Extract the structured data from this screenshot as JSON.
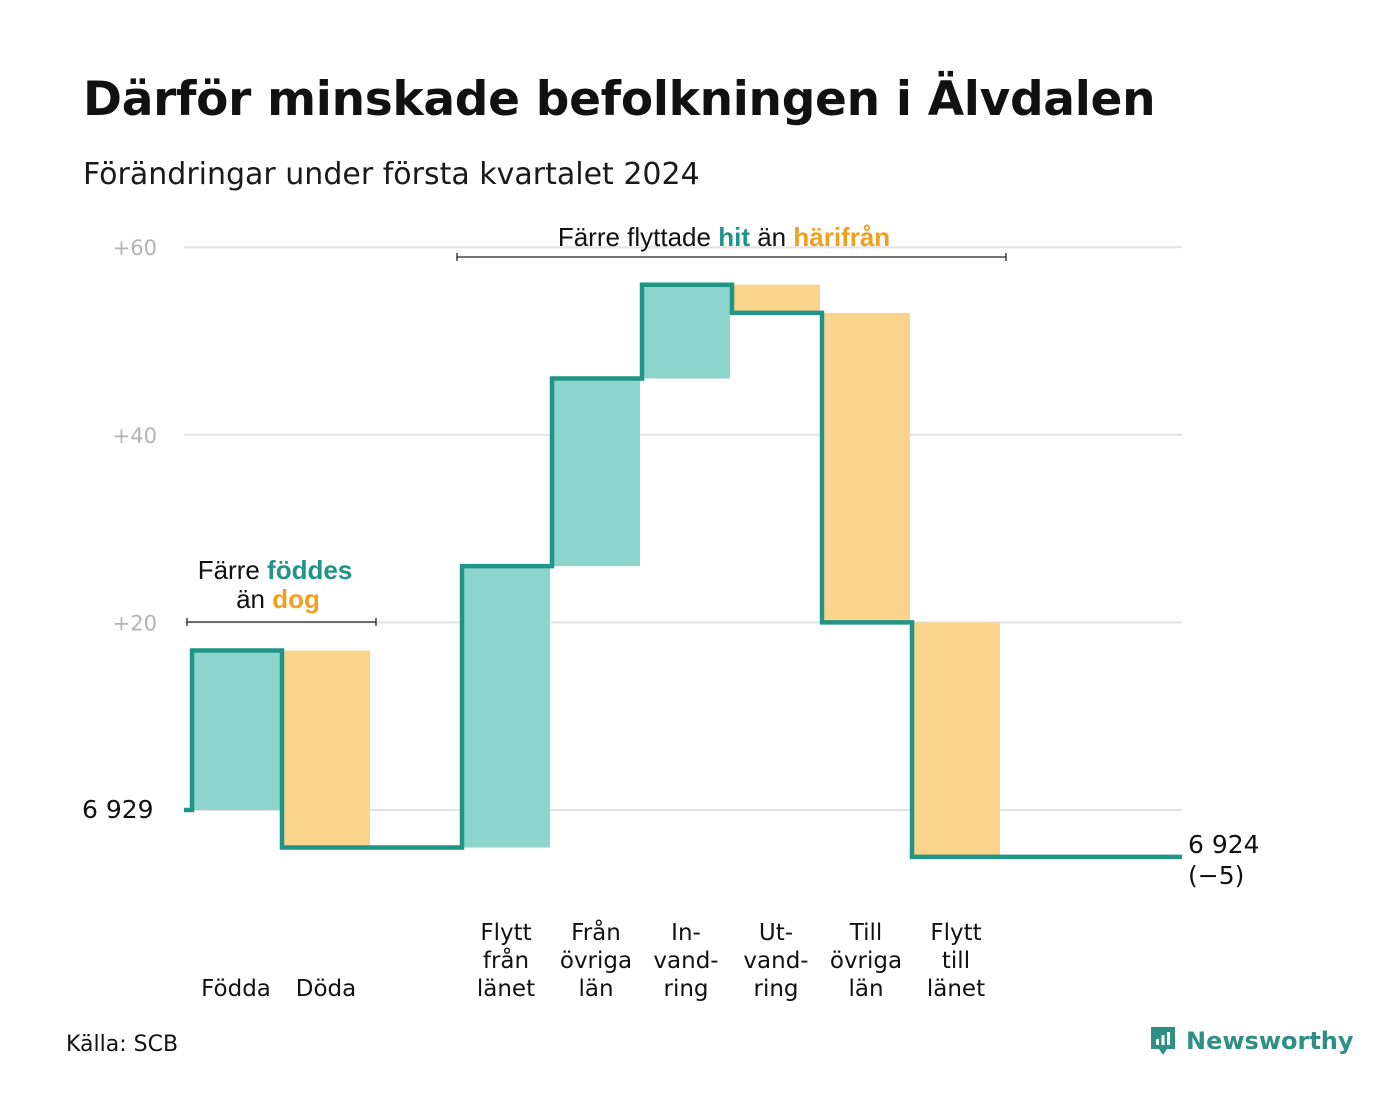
{
  "title": "Därför minskade befolkningen i Älvdalen",
  "subtitle": "Förändringar under första kvartalet 2024",
  "source": "Källa: SCB",
  "brand": "Newsworthy",
  "colors": {
    "increase_fill": "#8dd4cc",
    "decrease_fill": "#fad48c",
    "line": "#1f9487",
    "grid": "#e3e3e3",
    "teal_text": "#1f9487",
    "orange_text": "#f0a020"
  },
  "chart_data": {
    "type": "waterfall",
    "start_label": "6  929",
    "start_value": 6929,
    "end_label": "6 924",
    "end_change_label": "(−5)",
    "end_value": 6924,
    "y_ticks": [
      {
        "value": 20,
        "label": "+20"
      },
      {
        "value": 40,
        "label": "+40"
      },
      {
        "value": 60,
        "label": "+60"
      }
    ],
    "ylim": [
      -7,
      61
    ],
    "steps": [
      {
        "lines": [
          "Födda"
        ],
        "change": 17,
        "kind": "increase"
      },
      {
        "lines": [
          "Döda"
        ],
        "change": -21,
        "kind": "decrease"
      },
      {
        "lines": [],
        "change": 0,
        "kind": "gap"
      },
      {
        "lines": [
          "Flytt",
          "från",
          "länet"
        ],
        "change": 30,
        "kind": "increase"
      },
      {
        "lines": [
          "Från",
          "övriga",
          "län"
        ],
        "change": 20,
        "kind": "increase"
      },
      {
        "lines": [
          "In-",
          "vand-",
          "ring"
        ],
        "change": 10,
        "kind": "increase"
      },
      {
        "lines": [
          "Ut-",
          "vand-",
          "ring"
        ],
        "change": -3,
        "kind": "decrease"
      },
      {
        "lines": [
          "Till",
          "övriga",
          "län"
        ],
        "change": -33,
        "kind": "decrease"
      },
      {
        "lines": [
          "Flytt",
          "till",
          "länet"
        ],
        "change": -25,
        "kind": "decrease"
      }
    ],
    "annotations": [
      {
        "parts": [
          {
            "text": "Färre",
            "style": "plain"
          },
          {
            "text": "föddes",
            "style": "teal"
          }
        ],
        "parts2": [
          {
            "text": "än",
            "style": "plain"
          },
          {
            "text": "dog",
            "style": "orange"
          }
        ]
      },
      {
        "parts": [
          {
            "text": "Färre flyttade",
            "style": "plain"
          },
          {
            "text": "hit",
            "style": "teal"
          },
          {
            "text": "än",
            "style": "plain"
          },
          {
            "text": "härifrån",
            "style": "orange"
          }
        ]
      }
    ]
  }
}
